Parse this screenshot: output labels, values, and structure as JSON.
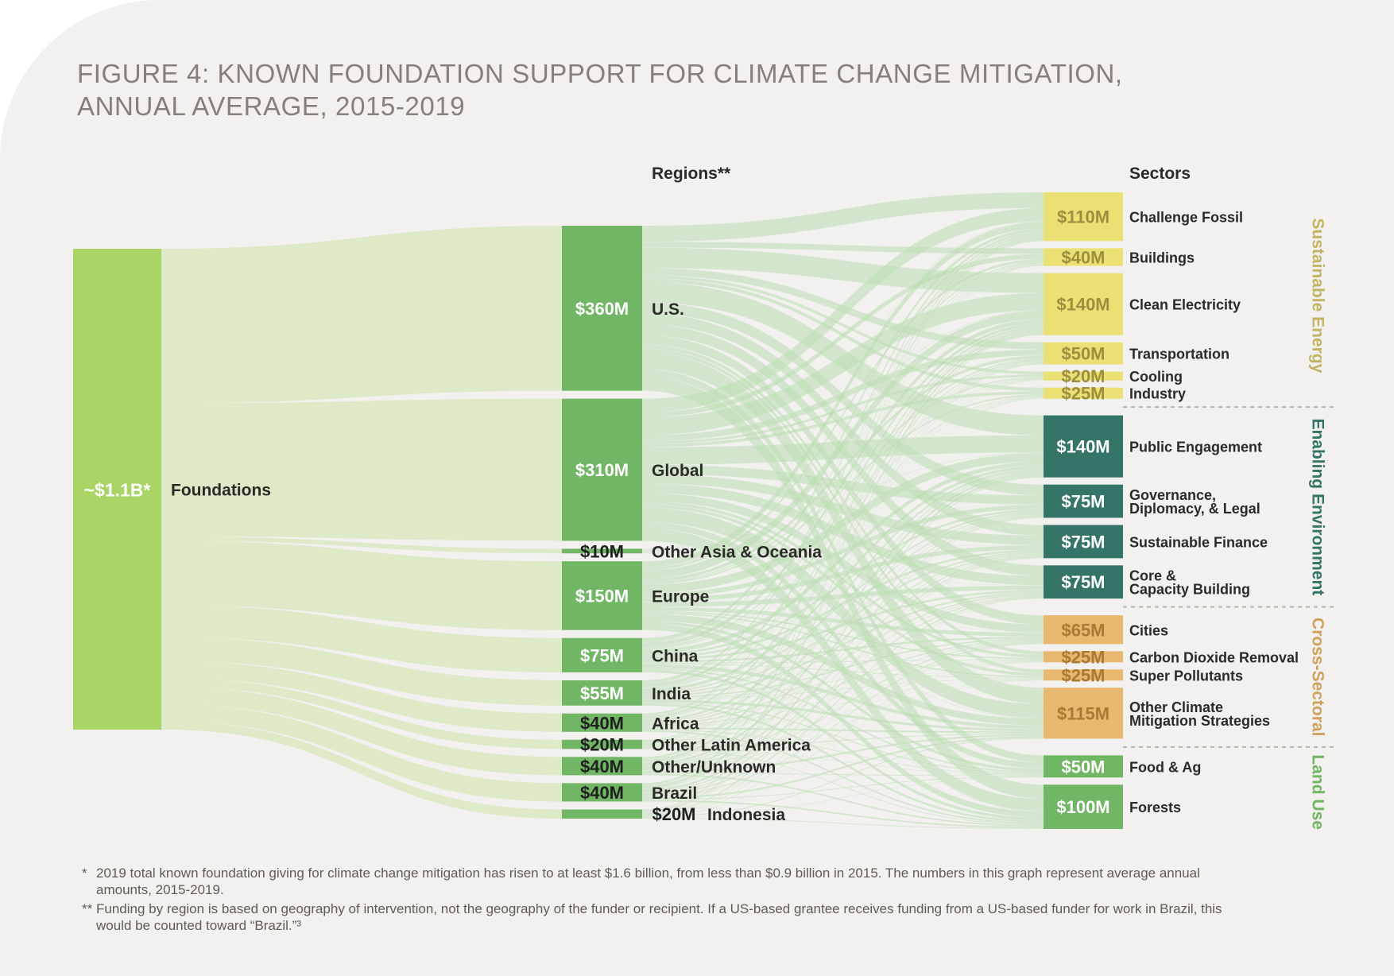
{
  "title": {
    "line1": "FIGURE 4: KNOWN FOUNDATION SUPPORT FOR CLIMATE CHANGE MITIGATION,",
    "line2": "ANNUAL AVERAGE, 2015-2019"
  },
  "footnotes": {
    "note1": {
      "mark": "*",
      "text": "2019 total known foundation giving for climate change mitigation has risen to at least $1.6 billion, from less than $0.9 billion in 2015. The numbers in this graph represent average annual amounts, 2015-2019."
    },
    "note2": {
      "mark": "**",
      "text": "Funding by region is based on geography of intervention, not the geography of the funder or recipient. If a US-based grantee receives funding from a US-based funder for work in Brazil, this would be counted toward “Brazil.”³"
    }
  },
  "colors": {
    "background": "#f2f1ef",
    "source": "#aad466",
    "region": "#71b664",
    "link_source": "#dce8c2",
    "link_region": "#b9ddb0",
    "sustainable_energy": "#ebe074",
    "enabling_environment": "#357568",
    "cross_sectoral": "#e8b870",
    "land_use": "#71b664",
    "group_label_sustainable_energy": "#c3b463",
    "group_label_enabling_environment": "#357568",
    "group_label_cross_sectoral": "#d0a15b",
    "group_label_land_use": "#71b664"
  },
  "chart_data": {
    "type": "sankey",
    "unit": "USD millions, annual average",
    "column_headers": {
      "regions": "Regions**",
      "sectors": "Sectors"
    },
    "source": {
      "name": "Foundations",
      "value_label": "~$1.1B*",
      "value": 1100
    },
    "regions": [
      {
        "name": "U.S.",
        "value": 360,
        "value_label": "$360M"
      },
      {
        "name": "Global",
        "value": 310,
        "value_label": "$310M"
      },
      {
        "name": "Other Asia & Oceania",
        "value": 10,
        "value_label": "$10M"
      },
      {
        "name": "Europe",
        "value": 150,
        "value_label": "$150M"
      },
      {
        "name": "China",
        "value": 75,
        "value_label": "$75M"
      },
      {
        "name": "India",
        "value": 55,
        "value_label": "$55M"
      },
      {
        "name": "Africa",
        "value": 40,
        "value_label": "$40M"
      },
      {
        "name": "Other Latin America",
        "value": 20,
        "value_label": "$20M"
      },
      {
        "name": "Other/Unknown",
        "value": 40,
        "value_label": "$40M"
      },
      {
        "name": "Brazil",
        "value": 40,
        "value_label": "$40M"
      },
      {
        "name": "Indonesia",
        "value": 20,
        "value_label": "$20M"
      }
    ],
    "sector_groups": [
      {
        "name": "Sustainable Energy",
        "color_key": "sustainable_energy",
        "sectors": [
          {
            "name": "Challenge Fossil",
            "value": 110,
            "value_label": "$110M"
          },
          {
            "name": "Buildings",
            "value": 40,
            "value_label": "$40M"
          },
          {
            "name": "Clean Electricity",
            "value": 140,
            "value_label": "$140M"
          },
          {
            "name": "Transportation",
            "value": 50,
            "value_label": "$50M"
          },
          {
            "name": "Cooling",
            "value": 20,
            "value_label": "$20M"
          },
          {
            "name": "Industry",
            "value": 25,
            "value_label": "$25M"
          }
        ]
      },
      {
        "name": "Enabling Environment",
        "color_key": "enabling_environment",
        "sectors": [
          {
            "name": "Public Engagement",
            "value": 140,
            "value_label": "$140M"
          },
          {
            "name": "Governance, Diplomacy, & Legal",
            "lines": [
              "Governance,",
              "Diplomacy, & Legal"
            ],
            "value": 75,
            "value_label": "$75M"
          },
          {
            "name": "Sustainable Finance",
            "value": 75,
            "value_label": "$75M"
          },
          {
            "name": "Core & Capacity Building",
            "lines": [
              "Core &",
              "Capacity Building"
            ],
            "value": 75,
            "value_label": "$75M"
          }
        ]
      },
      {
        "name": "Cross-Sectoral",
        "color_key": "cross_sectoral",
        "sectors": [
          {
            "name": "Cities",
            "value": 65,
            "value_label": "$65M"
          },
          {
            "name": "Carbon Dioxide Removal",
            "value": 25,
            "value_label": "$25M"
          },
          {
            "name": "Super Pollutants",
            "value": 25,
            "value_label": "$25M"
          },
          {
            "name": "Other Climate Mitigation Strategies",
            "lines": [
              "Other Climate",
              "Mitigation Strategies"
            ],
            "value": 115,
            "value_label": "$115M"
          }
        ]
      },
      {
        "name": "Land Use",
        "color_key": "land_use",
        "sectors": [
          {
            "name": "Food & Ag",
            "value": 50,
            "value_label": "$50M"
          },
          {
            "name": "Forests",
            "value": 100,
            "value_label": "$100M"
          }
        ]
      }
    ]
  }
}
